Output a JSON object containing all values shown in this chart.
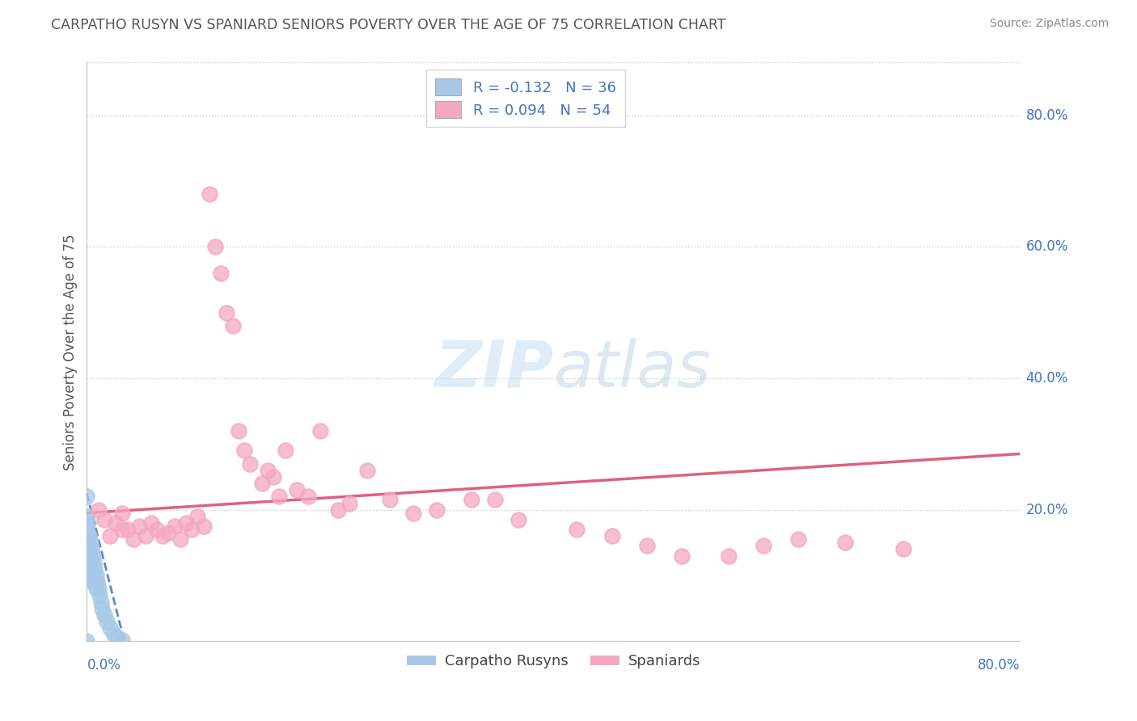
{
  "title": "CARPATHO RUSYN VS SPANIARD SENIORS POVERTY OVER THE AGE OF 75 CORRELATION CHART",
  "source": "Source: ZipAtlas.com",
  "ylabel": "Seniors Poverty Over the Age of 75",
  "legend_blue_R": "-0.132",
  "legend_blue_N": "36",
  "legend_pink_R": "0.094",
  "legend_pink_N": "54",
  "blue_scatter_x": [
    0.0,
    0.0,
    0.0,
    0.001,
    0.001,
    0.001,
    0.002,
    0.002,
    0.002,
    0.003,
    0.003,
    0.003,
    0.004,
    0.004,
    0.004,
    0.005,
    0.005,
    0.005,
    0.006,
    0.006,
    0.007,
    0.007,
    0.008,
    0.008,
    0.009,
    0.01,
    0.011,
    0.012,
    0.013,
    0.015,
    0.017,
    0.02,
    0.023,
    0.026,
    0.03,
    0.0
  ],
  "blue_scatter_y": [
    0.22,
    0.19,
    0.17,
    0.18,
    0.16,
    0.14,
    0.16,
    0.14,
    0.12,
    0.15,
    0.13,
    0.11,
    0.14,
    0.12,
    0.1,
    0.13,
    0.11,
    0.09,
    0.12,
    0.1,
    0.11,
    0.09,
    0.1,
    0.08,
    0.09,
    0.08,
    0.07,
    0.06,
    0.05,
    0.04,
    0.03,
    0.02,
    0.01,
    0.005,
    0.002,
    0.0
  ],
  "pink_scatter_x": [
    0.01,
    0.015,
    0.02,
    0.025,
    0.03,
    0.03,
    0.035,
    0.04,
    0.045,
    0.05,
    0.055,
    0.06,
    0.065,
    0.07,
    0.075,
    0.08,
    0.085,
    0.09,
    0.095,
    0.1,
    0.105,
    0.11,
    0.115,
    0.12,
    0.125,
    0.13,
    0.135,
    0.14,
    0.15,
    0.155,
    0.16,
    0.165,
    0.17,
    0.18,
    0.19,
    0.2,
    0.215,
    0.225,
    0.24,
    0.26,
    0.28,
    0.3,
    0.33,
    0.35,
    0.37,
    0.42,
    0.45,
    0.48,
    0.51,
    0.55,
    0.58,
    0.61,
    0.65,
    0.7
  ],
  "pink_scatter_y": [
    0.2,
    0.185,
    0.16,
    0.18,
    0.17,
    0.195,
    0.17,
    0.155,
    0.175,
    0.16,
    0.18,
    0.17,
    0.16,
    0.165,
    0.175,
    0.155,
    0.18,
    0.17,
    0.19,
    0.175,
    0.68,
    0.6,
    0.56,
    0.5,
    0.48,
    0.32,
    0.29,
    0.27,
    0.24,
    0.26,
    0.25,
    0.22,
    0.29,
    0.23,
    0.22,
    0.32,
    0.2,
    0.21,
    0.26,
    0.215,
    0.195,
    0.2,
    0.215,
    0.215,
    0.185,
    0.17,
    0.16,
    0.145,
    0.13,
    0.13,
    0.145,
    0.155,
    0.15,
    0.14
  ],
  "blue_color": "#a8c8e8",
  "pink_color": "#f4a8c0",
  "blue_line_color": "#4472c4",
  "pink_line_color": "#e06080",
  "grid_color": "#cccccc",
  "bg_color": "#ffffff",
  "axis_label_color": "#4472c4",
  "title_color": "#555555",
  "source_color": "#888888",
  "ytick_values": [
    0.8,
    0.6,
    0.4,
    0.2
  ],
  "ytick_labels": [
    "80.0%",
    "60.0%",
    "40.0%",
    "20.0%"
  ],
  "xlim": [
    0.0,
    0.8
  ],
  "ylim": [
    0.0,
    0.88
  ]
}
